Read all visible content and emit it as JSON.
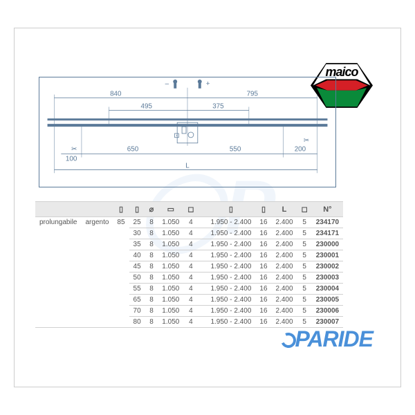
{
  "logo": {
    "text": "maico",
    "hex_colors": {
      "top": "#000000",
      "mid": "#d41f26",
      "bot": "#0a8a3a"
    }
  },
  "brand": "PARIDE",
  "diagram": {
    "dims": {
      "top_left": "840",
      "top_right": "795",
      "mid_left": "495",
      "mid_right": "375",
      "bot_left": "650",
      "bot_right": "550",
      "far_left": "100",
      "far_right": "200",
      "length": "L",
      "minus": "–",
      "plus": "+"
    },
    "stroke": "#5b7a99",
    "title_font": 10
  },
  "table": {
    "headers": [
      "",
      "",
      "",
      "",
      "⌀",
      "",
      "",
      "",
      "",
      "",
      "",
      "L",
      "",
      "N°"
    ],
    "row_label_1": "prolungabile",
    "row_label_2": "argento",
    "fixed_col": "85",
    "rows": [
      {
        "a": "25",
        "b": "8",
        "c": "1.050",
        "d": "4",
        "e": "1.950 - 2.400",
        "f": "16",
        "g": "2.400",
        "h": "5",
        "n": "234170"
      },
      {
        "a": "30",
        "b": "8",
        "c": "1.050",
        "d": "4",
        "e": "1.950 - 2.400",
        "f": "16",
        "g": "2.400",
        "h": "5",
        "n": "234171"
      },
      {
        "a": "35",
        "b": "8",
        "c": "1.050",
        "d": "4",
        "e": "1.950 - 2.400",
        "f": "16",
        "g": "2.400",
        "h": "5",
        "n": "230000"
      },
      {
        "a": "40",
        "b": "8",
        "c": "1.050",
        "d": "4",
        "e": "1.950 - 2.400",
        "f": "16",
        "g": "2.400",
        "h": "5",
        "n": "230001"
      },
      {
        "a": "45",
        "b": "8",
        "c": "1.050",
        "d": "4",
        "e": "1.950 - 2.400",
        "f": "16",
        "g": "2.400",
        "h": "5",
        "n": "230002"
      },
      {
        "a": "50",
        "b": "8",
        "c": "1.050",
        "d": "4",
        "e": "1.950 - 2.400",
        "f": "16",
        "g": "2.400",
        "h": "5",
        "n": "230003"
      },
      {
        "a": "55",
        "b": "8",
        "c": "1.050",
        "d": "4",
        "e": "1.950 - 2.400",
        "f": "16",
        "g": "2.400",
        "h": "5",
        "n": "230004"
      },
      {
        "a": "65",
        "b": "8",
        "c": "1.050",
        "d": "4",
        "e": "1.950 - 2.400",
        "f": "16",
        "g": "2.400",
        "h": "5",
        "n": "230005"
      },
      {
        "a": "70",
        "b": "8",
        "c": "1.050",
        "d": "4",
        "e": "1.950 - 2.400",
        "f": "16",
        "g": "2.400",
        "h": "5",
        "n": "230006"
      },
      {
        "a": "80",
        "b": "8",
        "c": "1.050",
        "d": "4",
        "e": "1.950 - 2.400",
        "f": "16",
        "g": "2.400",
        "h": "5",
        "n": "230007"
      }
    ],
    "header_bg": "#e9e9e9",
    "border": "#d0d0d0",
    "text_color": "#555555",
    "font_size": 10
  }
}
